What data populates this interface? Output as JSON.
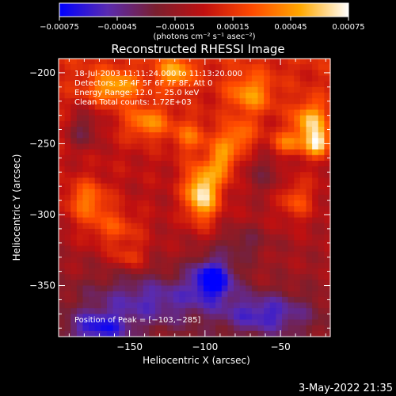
{
  "chart_data": {
    "type": "heatmap",
    "title": "Reconstructed RHESSI Image",
    "xlabel": "Heliocentric X (arcsec)",
    "ylabel": "Heliocentric Y (arcsec)",
    "xlim": [
      -197,
      -17
    ],
    "ylim": [
      -386,
      -190
    ],
    "x_ticks": [
      -150,
      -100,
      -50
    ],
    "y_ticks": [
      -200,
      -250,
      -300,
      -350
    ],
    "x_tick_labels": [
      "−150",
      "−100",
      "−50"
    ],
    "y_tick_labels": [
      "−200",
      "−250",
      "−300",
      "−350"
    ],
    "colorbar": {
      "range": [
        -0.00075,
        0.00075
      ],
      "ticks": [
        -0.00075,
        -0.00045,
        -0.00015,
        0.00015,
        0.00045,
        0.00075
      ],
      "tick_labels": [
        "−0.00075",
        "−0.00045",
        "−0.00015",
        "0.00015",
        "0.00045",
        "0.00075"
      ],
      "units": "(photons cm⁻² s⁻¹ asec⁻²)",
      "colors": [
        "#0000ff",
        "#5a2bb0",
        "#7a1f2f",
        "#c01010",
        "#ff4a00",
        "#ffa800",
        "#ffffff"
      ]
    },
    "info_lines": [
      "18-Jul-2003 11:11:24.000 to 11:13:20.000",
      "Detectors: 3F 4F 5F 6F 7F 8F, Att 0",
      "Energy Range: 12.0 − 25.0 keV",
      "Clean    Total counts: 1.72E+03"
    ],
    "peak_label": "Position of Peak = [−103,−285]",
    "peak": [
      -103,
      -285
    ],
    "grid": false,
    "hotspots": [
      {
        "x": -102,
        "y": -285,
        "sx": 8,
        "sy": 14,
        "v": 0.00075
      },
      {
        "x": -88,
        "y": -262,
        "sx": 6,
        "sy": 10,
        "v": 0.00045
      },
      {
        "x": -160,
        "y": -210,
        "sx": 12,
        "sy": 8,
        "v": 0.00045
      },
      {
        "x": -138,
        "y": -235,
        "sx": 10,
        "sy": 8,
        "v": 0.0004
      },
      {
        "x": -120,
        "y": -200,
        "sx": 8,
        "sy": 8,
        "v": 0.00045
      },
      {
        "x": -178,
        "y": -290,
        "sx": 10,
        "sy": 10,
        "v": 0.0004
      },
      {
        "x": -160,
        "y": -310,
        "sx": 14,
        "sy": 10,
        "v": 0.0003
      },
      {
        "x": -70,
        "y": -215,
        "sx": 10,
        "sy": 10,
        "v": 0.0004
      },
      {
        "x": -30,
        "y": -235,
        "sx": 8,
        "sy": 10,
        "v": 0.00055
      },
      {
        "x": -25,
        "y": -250,
        "sx": 5,
        "sy": 6,
        "v": 0.0006
      },
      {
        "x": -45,
        "y": -250,
        "sx": 8,
        "sy": 6,
        "v": 0.00035
      },
      {
        "x": -78,
        "y": -245,
        "sx": 8,
        "sy": 8,
        "v": 0.00035
      },
      {
        "x": -110,
        "y": -245,
        "sx": 8,
        "sy": 8,
        "v": 0.0003
      },
      {
        "x": -40,
        "y": -290,
        "sx": 8,
        "sy": 10,
        "v": 0.0003
      },
      {
        "x": -150,
        "y": -330,
        "sx": 8,
        "sy": 6,
        "v": 0.00025
      },
      {
        "x": -180,
        "y": -240,
        "sx": 8,
        "sy": 10,
        "v": -0.0003
      },
      {
        "x": -60,
        "y": -270,
        "sx": 10,
        "sy": 12,
        "v": -0.0002
      },
      {
        "x": -135,
        "y": -360,
        "sx": 30,
        "sy": 12,
        "v": -0.00035
      },
      {
        "x": -95,
        "y": -345,
        "sx": 10,
        "sy": 10,
        "v": -0.00065
      },
      {
        "x": -60,
        "y": -370,
        "sx": 20,
        "sy": 10,
        "v": -0.0004
      },
      {
        "x": -170,
        "y": -380,
        "sx": 14,
        "sy": 8,
        "v": -0.00045
      },
      {
        "x": -75,
        "y": -320,
        "sx": 12,
        "sy": 8,
        "v": -0.0002
      }
    ]
  },
  "footer": {
    "timestamp": "3-May-2022 21:35"
  }
}
